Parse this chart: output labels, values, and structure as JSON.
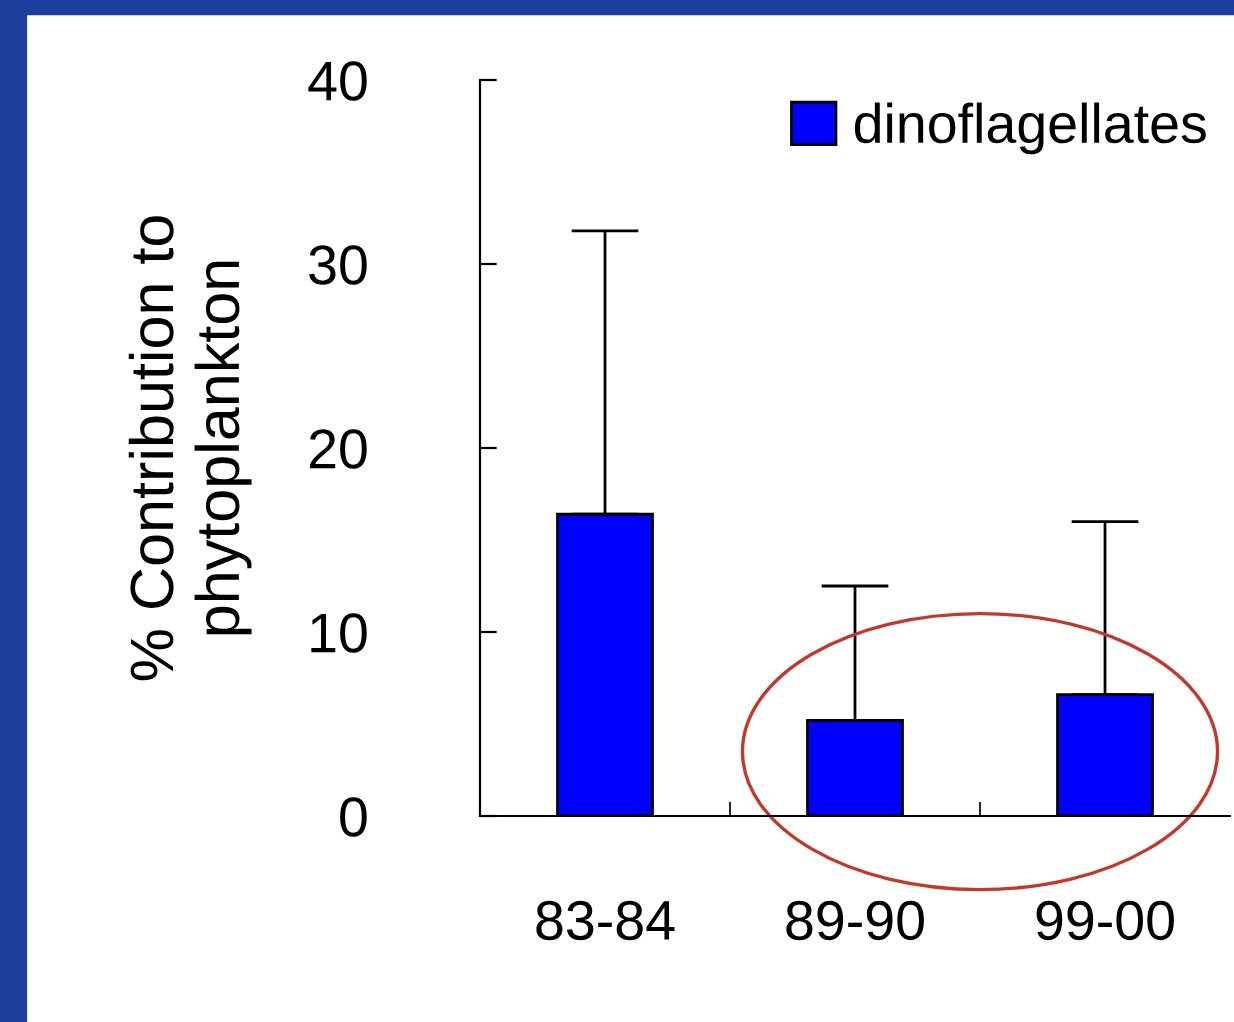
{
  "chart_data": {
    "type": "bar",
    "ylabel": "% Contribution to\nphytoplankton",
    "categories": [
      "83-84",
      "89-90",
      "99-00"
    ],
    "series": [
      {
        "name": "dinoflagellates",
        "color": "#0000ff",
        "values": [
          16.4,
          5.2,
          6.6
        ],
        "errors": [
          [
            16.4,
            31.8
          ],
          [
            5.2,
            12.5
          ],
          [
            6.6,
            16.0
          ]
        ]
      }
    ],
    "ylim": [
      0,
      40
    ],
    "yticks": [
      0,
      10,
      20,
      30,
      40
    ],
    "grid": false,
    "legend": "top right"
  }
}
